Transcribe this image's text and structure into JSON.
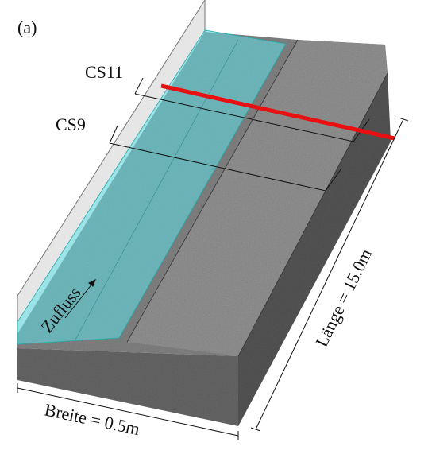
{
  "label": "(a)",
  "sections": [
    "CS11",
    "CS9"
  ],
  "inflow": "Zufluss",
  "length": "Länge = 15.0m",
  "width": "Breite = 0.5m"
}
